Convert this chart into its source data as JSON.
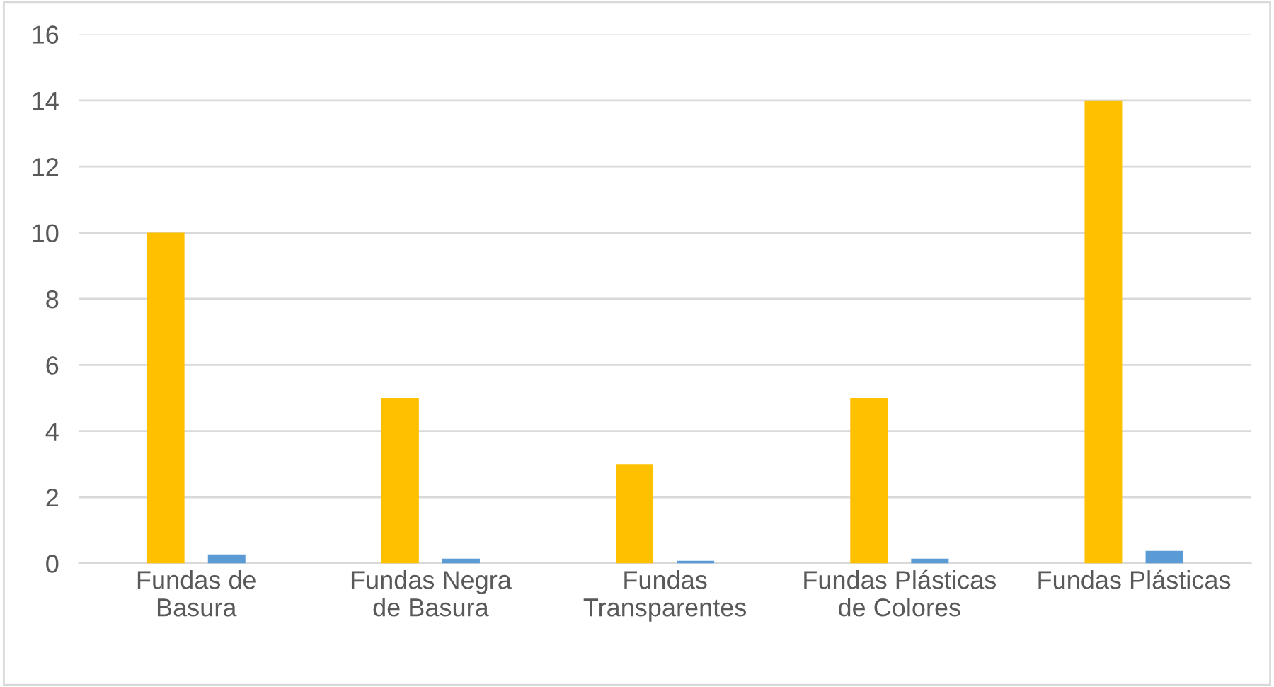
{
  "chart_data": {
    "type": "bar",
    "categories": [
      "Fundas de\nBasura",
      "Fundas Negra\nde Basura",
      "Fundas\nTransparentes",
      "Fundas Plásticas\nde Colores",
      "Fundas Plásticas"
    ],
    "series": [
      {
        "color": "#ffc000",
        "values": [
          10,
          5,
          3,
          5,
          14
        ]
      },
      {
        "color": "#5b9bd5",
        "values": [
          0.27,
          0.14,
          0.08,
          0.14,
          0.38
        ]
      }
    ],
    "ylim": [
      0,
      16
    ],
    "yticks": [
      0,
      2,
      4,
      6,
      8,
      10,
      12,
      14,
      16
    ],
    "grid": "y",
    "legend": false
  }
}
